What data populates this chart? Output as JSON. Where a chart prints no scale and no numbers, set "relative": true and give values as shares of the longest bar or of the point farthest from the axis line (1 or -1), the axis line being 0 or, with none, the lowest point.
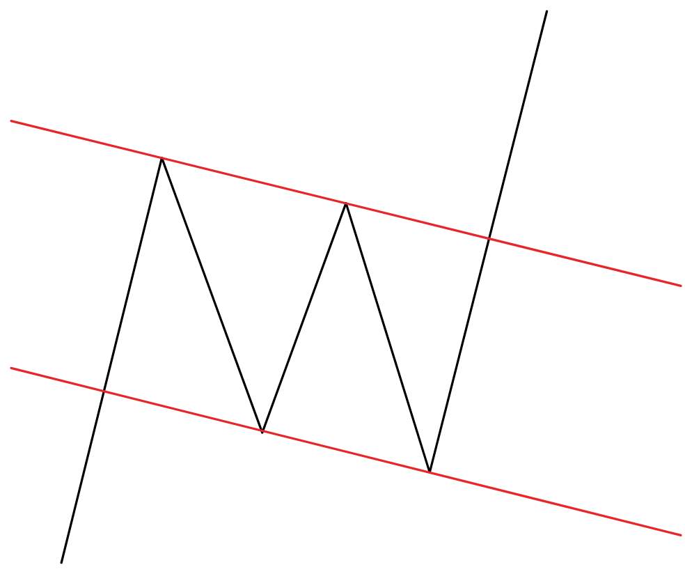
{
  "chart_data": {
    "type": "line",
    "relative": true,
    "marker": "none",
    "line_style": "solid",
    "grid": false,
    "categories": [
      null,
      null,
      null,
      null,
      null,
      null,
      null,
      null,
      null,
      null,
      null,
      null,
      null,
      null,
      null,
      null,
      null,
      null,
      null,
      null,
      null,
      null,
      null,
      null,
      null,
      null,
      null,
      null,
      null,
      null,
      null,
      null,
      null,
      null,
      null,
      null,
      null,
      null,
      null,
      null,
      null
    ],
    "series": [
      {
        "color": "#000000",
        "values": [
          null,
          null,
          null,
          0,
          null,
          null,
          null,
          null,
          null,
          0.734,
          null,
          null,
          null,
          null,
          null,
          0.236,
          null,
          null,
          null,
          null,
          0.652,
          null,
          null,
          null,
          null,
          0.164,
          null,
          null,
          null,
          null,
          null,
          null,
          1,
          null,
          null,
          null,
          null,
          null,
          null,
          null,
          null
        ]
      },
      {
        "color": "#e8262a",
        "values": [
          0.801,
          null,
          null,
          null,
          null,
          null,
          null,
          null,
          null,
          null,
          null,
          null,
          null,
          null,
          null,
          null,
          null,
          null,
          null,
          null,
          null,
          null,
          null,
          null,
          null,
          null,
          null,
          null,
          null,
          null,
          null,
          null,
          null,
          null,
          null,
          null,
          null,
          null,
          null,
          null,
          0.502
        ]
      },
      {
        "color": "#e8262a",
        "values": [
          0.353,
          null,
          null,
          null,
          null,
          null,
          null,
          null,
          null,
          null,
          null,
          null,
          null,
          null,
          null,
          null,
          null,
          null,
          null,
          null,
          null,
          null,
          null,
          null,
          null,
          null,
          null,
          null,
          null,
          null,
          null,
          null,
          null,
          null,
          null,
          null,
          null,
          null,
          null,
          null,
          0.05
        ]
      }
    ]
  }
}
